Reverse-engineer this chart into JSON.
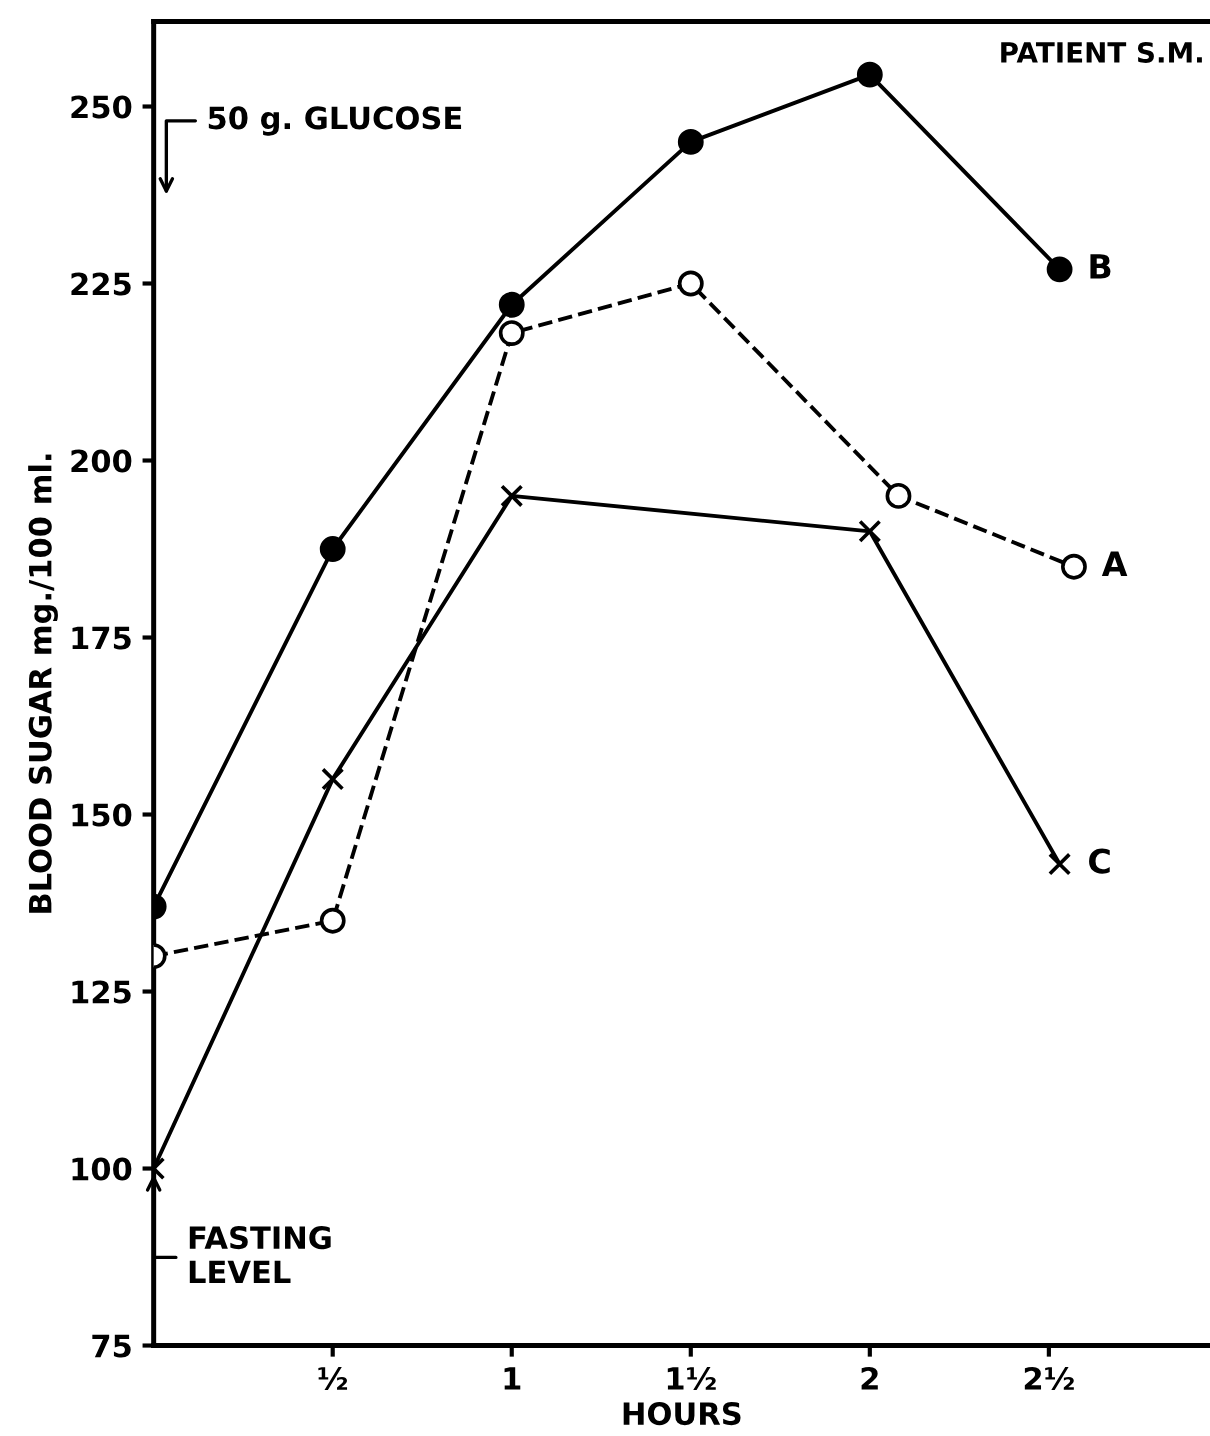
{
  "chart_data": {
    "type": "line",
    "xlabel": "HOURS",
    "ylabel": "BLOOD SUGAR mg./100 ml.",
    "xlim": [
      0,
      2.95
    ],
    "ylim": [
      75,
      262
    ],
    "xticks": [
      {
        "value": 0.5,
        "label": "½"
      },
      1,
      {
        "value": 1.5,
        "label": "1½"
      },
      2,
      {
        "value": 2.5,
        "label": "2½"
      }
    ],
    "yticks": [
      75,
      100,
      125,
      150,
      175,
      200,
      225,
      250
    ],
    "grid": false,
    "legend": false,
    "series": [
      {
        "name": "B",
        "color": "#000000",
        "marker": "circle",
        "line_style": "solid",
        "x": [
          0,
          0.5,
          1,
          1.5,
          2,
          2.53
        ],
        "values": [
          137,
          187.5,
          222,
          245,
          254.5,
          227
        ]
      },
      {
        "name": "A",
        "color": "#000000",
        "marker": "circle",
        "line_style": "dashed",
        "x": [
          0,
          0.5,
          1,
          1.5,
          2.08,
          2.57
        ],
        "values": [
          130,
          135,
          218,
          225,
          195,
          185
        ]
      },
      {
        "name": "C",
        "color": "#000000",
        "marker": "cross",
        "line_style": "solid",
        "x": [
          0,
          0.5,
          1,
          2,
          2.53
        ],
        "values": [
          100,
          155,
          195,
          190,
          143
        ]
      }
    ],
    "annotations": [
      "PATIENT S.M.",
      "50 g. GLUCOSE",
      {
        "text": "FASTING\nLEVEL",
        "x": 0,
        "y": 100
      }
    ]
  }
}
